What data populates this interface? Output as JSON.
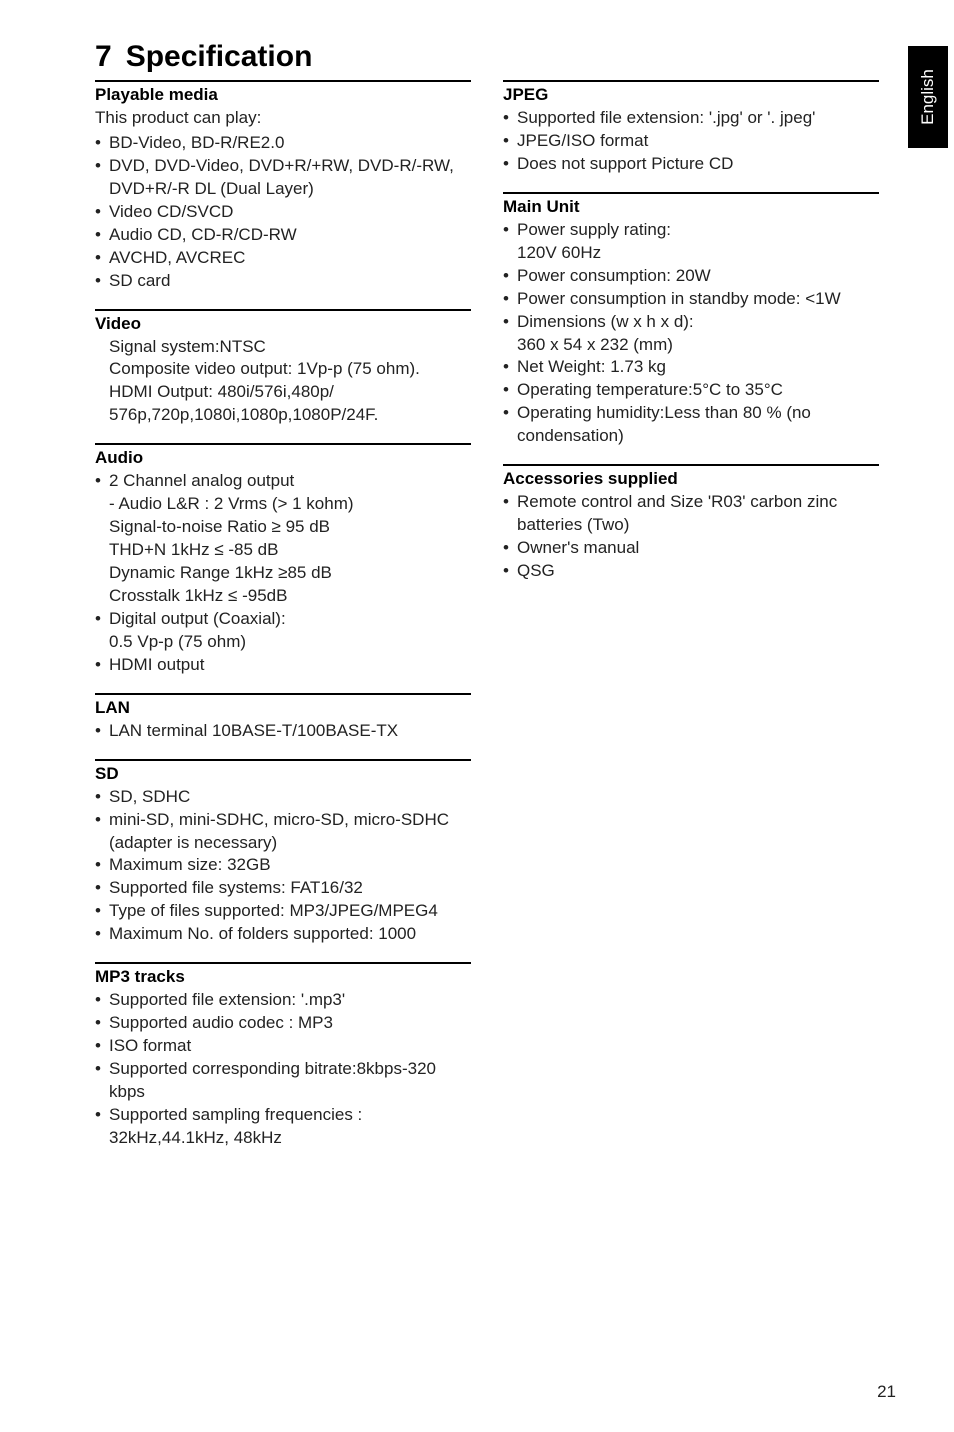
{
  "side_tab": "English",
  "page_number": "21",
  "title_number": "7",
  "title_text": "Specification",
  "left": {
    "playable": {
      "heading": "Playable media",
      "intro": "This product can play:",
      "items": [
        "BD-Video, BD-R/RE2.0",
        "DVD, DVD-Video, DVD+R/+RW, DVD-R/-RW, DVD+R/-R DL (Dual Layer)",
        "Video CD/SVCD",
        "Audio CD, CD-R/CD-RW",
        "AVCHD, AVCREC",
        "SD card"
      ]
    },
    "video": {
      "heading": "Video",
      "lines": [
        "Signal system:NTSC",
        "Composite video output: 1Vp-p (75 ohm).",
        "HDMI Output: 480i/576i,480p/ 576p,720p,1080i,1080p,1080P/24F."
      ]
    },
    "audio": {
      "heading": "Audio",
      "items": [
        "2 Channel analog output",
        "- Audio L&R : 2 Vrms (> 1 kohm)",
        "Signal-to-noise Ratio ≥ 95 dB",
        "THD+N 1kHz ≤ -85 dB",
        "Dynamic Range 1kHz ≥85 dB",
        "Crosstalk 1kHz ≤ -95dB",
        "Digital output (Coaxial):",
        "0.5 Vp-p (75 ohm)",
        "HDMI output"
      ]
    },
    "lan": {
      "heading": "LAN",
      "items": [
        "LAN terminal   10BASE-T/100BASE-TX"
      ]
    },
    "sd": {
      "heading": "SD",
      "items": [
        "SD, SDHC",
        "mini-SD, mini-SDHC, micro-SD, micro-SDHC (adapter is necessary)",
        "Maximum size: 32GB",
        "Supported file systems: FAT16/32",
        "Type of files supported: MP3/JPEG/MPEG4",
        "Maximum No. of folders supported: 1000"
      ]
    },
    "mp3": {
      "heading": "MP3 tracks",
      "items": [
        "Supported file extension: '.mp3'",
        "Supported audio codec : MP3",
        "ISO format",
        "Supported corresponding bitrate:8kbps-320 kbps",
        "Supported sampling frequencies : 32kHz,44.1kHz, 48kHz"
      ]
    }
  },
  "right": {
    "jpeg": {
      "heading": "JPEG",
      "items": [
        "Supported file extension: '.jpg' or '. jpeg'",
        "JPEG/ISO format",
        "Does not support Picture CD"
      ]
    },
    "main": {
      "heading": "Main Unit",
      "items": [
        "Power supply rating:",
        "120V 60Hz",
        "Power consumption: 20W",
        "Power consumption in standby mode: <1W",
        "Dimensions (w x h x d):",
        "360 x 54 x 232 (mm)",
        "Net Weight: 1.73 kg",
        "Operating temperature:5°C to 35°C",
        "Operating humidity:Less than 80 % (no condensation)"
      ]
    },
    "acc": {
      "heading": "Accessories supplied",
      "items": [
        "Remote control and Size 'R03' carbon zinc batteries (Two)",
        "Owner's manual",
        "QSG"
      ]
    }
  }
}
